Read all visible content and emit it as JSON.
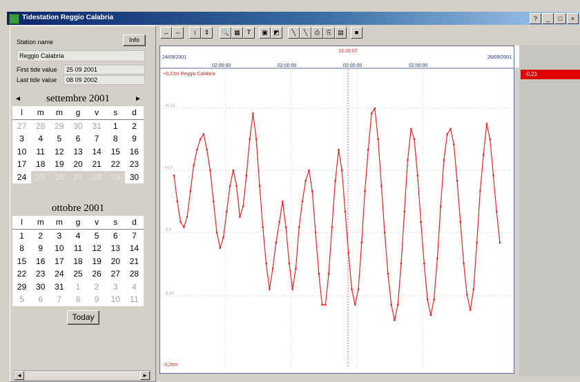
{
  "window": {
    "title": "Tidestation Reggio Calabria",
    "buttons": [
      "?",
      "_",
      "□",
      "×"
    ]
  },
  "station": {
    "name_label": "Station name",
    "info_button": "Info",
    "name_value": "Reggio Calabria",
    "first_label": "First tide value",
    "first_value": "25 09 2001",
    "last_label": "Last tide value",
    "last_value": "08 09 2002"
  },
  "calendar1": {
    "month": "settembre 2001",
    "prev": "◄",
    "next": "►",
    "dow": [
      "l",
      "m",
      "m",
      "g",
      "v",
      "s",
      "d"
    ],
    "days": [
      {
        "t": "27",
        "c": "gray"
      },
      {
        "t": "28",
        "c": "gray"
      },
      {
        "t": "29",
        "c": "gray"
      },
      {
        "t": "30",
        "c": "gray"
      },
      {
        "t": "31",
        "c": "gray"
      },
      {
        "t": "1",
        "c": ""
      },
      {
        "t": "2",
        "c": ""
      },
      {
        "t": "3",
        "c": ""
      },
      {
        "t": "4",
        "c": ""
      },
      {
        "t": "5",
        "c": ""
      },
      {
        "t": "6",
        "c": ""
      },
      {
        "t": "7",
        "c": ""
      },
      {
        "t": "8",
        "c": ""
      },
      {
        "t": "9",
        "c": ""
      },
      {
        "t": "10",
        "c": ""
      },
      {
        "t": "11",
        "c": ""
      },
      {
        "t": "12",
        "c": ""
      },
      {
        "t": "13",
        "c": ""
      },
      {
        "t": "14",
        "c": ""
      },
      {
        "t": "15",
        "c": ""
      },
      {
        "t": "16",
        "c": ""
      },
      {
        "t": "17",
        "c": ""
      },
      {
        "t": "18",
        "c": ""
      },
      {
        "t": "19",
        "c": ""
      },
      {
        "t": "20",
        "c": ""
      },
      {
        "t": "21",
        "c": ""
      },
      {
        "t": "22",
        "c": ""
      },
      {
        "t": "23",
        "c": ""
      },
      {
        "t": "24",
        "c": ""
      },
      {
        "t": "25",
        "c": "sel"
      },
      {
        "t": "26",
        "c": "sel"
      },
      {
        "t": "27",
        "c": "sel"
      },
      {
        "t": "28",
        "c": "sel"
      },
      {
        "t": "29",
        "c": "sel"
      },
      {
        "t": "30",
        "c": ""
      }
    ]
  },
  "calendar2": {
    "month": "ottobre 2001",
    "dow": [
      "l",
      "m",
      "m",
      "g",
      "v",
      "s",
      "d"
    ],
    "days": [
      {
        "t": "1",
        "c": ""
      },
      {
        "t": "2",
        "c": ""
      },
      {
        "t": "3",
        "c": ""
      },
      {
        "t": "4",
        "c": ""
      },
      {
        "t": "5",
        "c": ""
      },
      {
        "t": "6",
        "c": ""
      },
      {
        "t": "7",
        "c": ""
      },
      {
        "t": "8",
        "c": ""
      },
      {
        "t": "9",
        "c": ""
      },
      {
        "t": "10",
        "c": ""
      },
      {
        "t": "11",
        "c": ""
      },
      {
        "t": "12",
        "c": ""
      },
      {
        "t": "13",
        "c": ""
      },
      {
        "t": "14",
        "c": ""
      },
      {
        "t": "15",
        "c": ""
      },
      {
        "t": "16",
        "c": ""
      },
      {
        "t": "17",
        "c": ""
      },
      {
        "t": "18",
        "c": ""
      },
      {
        "t": "19",
        "c": ""
      },
      {
        "t": "20",
        "c": ""
      },
      {
        "t": "21",
        "c": ""
      },
      {
        "t": "22",
        "c": ""
      },
      {
        "t": "23",
        "c": ""
      },
      {
        "t": "24",
        "c": ""
      },
      {
        "t": "25",
        "c": ""
      },
      {
        "t": "26",
        "c": ""
      },
      {
        "t": "27",
        "c": ""
      },
      {
        "t": "28",
        "c": ""
      },
      {
        "t": "29",
        "c": ""
      },
      {
        "t": "30",
        "c": ""
      },
      {
        "t": "31",
        "c": ""
      },
      {
        "t": "1",
        "c": "gray"
      },
      {
        "t": "2",
        "c": "gray"
      },
      {
        "t": "3",
        "c": "gray"
      },
      {
        "t": "4",
        "c": "gray"
      },
      {
        "t": "5",
        "c": "gray"
      },
      {
        "t": "6",
        "c": "gray"
      },
      {
        "t": "7",
        "c": "gray"
      },
      {
        "t": "8",
        "c": "gray"
      },
      {
        "t": "9",
        "c": "gray"
      },
      {
        "t": "10",
        "c": "gray"
      },
      {
        "t": "11",
        "c": "gray"
      }
    ]
  },
  "today_button": "Today",
  "toolbar": {
    "icons": [
      {
        "name": "zoom-out-horizontal-icon",
        "glyph": "↔"
      },
      {
        "name": "zoom-in-horizontal-icon",
        "glyph": "⇔"
      },
      {
        "name": "zoom-out-vertical-icon",
        "glyph": "↕"
      },
      {
        "name": "zoom-in-vertical-icon",
        "glyph": "⇕"
      },
      {
        "name": "magnifier-icon",
        "glyph": "🔍"
      },
      {
        "name": "zoom-area-icon",
        "glyph": "▦"
      },
      {
        "name": "cursor-t-icon",
        "glyph": "T"
      },
      {
        "name": "window-icon",
        "glyph": "▣"
      },
      {
        "name": "chart-icon",
        "glyph": "◩"
      },
      {
        "name": "pen-icon",
        "glyph": "╲"
      },
      {
        "name": "pen-2-icon",
        "glyph": "╲"
      },
      {
        "name": "print-icon",
        "glyph": "⎙"
      },
      {
        "name": "export-icon",
        "glyph": "⎘"
      },
      {
        "name": "grid-icon",
        "glyph": "▤"
      },
      {
        "name": "stop-icon",
        "glyph": "■"
      }
    ]
  },
  "chart": {
    "date_left": "24/09/2001",
    "date_right": "26/09/2001",
    "cursor_time": "16:26:07",
    "tick_labels": [
      "02:00:00",
      "02:00:00",
      "02:00:00",
      "02:00:00",
      "02:00:00",
      "02:00:00"
    ],
    "series_label": "+0,22m  Reggio Calabria",
    "bottom_label": "-0,26m",
    "y_labels": [
      "+0,12",
      "+0,0",
      "-0,0",
      "-0,10"
    ],
    "readout": "-0,21",
    "line_color": "#e82020"
  },
  "chart_data": {
    "type": "line",
    "title": "Reggio Calabria",
    "ylabel": "",
    "xlabel": "",
    "ylim": [
      -0.26,
      0.22
    ],
    "x": [
      0,
      1,
      2,
      3,
      4,
      5,
      6,
      7,
      8,
      9,
      10,
      11,
      12,
      13,
      14,
      15,
      16,
      17,
      18,
      19,
      20,
      21,
      22,
      23,
      24,
      25,
      26,
      27,
      28,
      29,
      30,
      31,
      32,
      33,
      34,
      35,
      36,
      37,
      38,
      39,
      40,
      41,
      42,
      43,
      44,
      45,
      46,
      47,
      48,
      49,
      50,
      51,
      52,
      53,
      54,
      55,
      56,
      57,
      58,
      59,
      60,
      61,
      62,
      63,
      64,
      65,
      66,
      67,
      68,
      69,
      70,
      71,
      72,
      73,
      74,
      75,
      76,
      77,
      78,
      79,
      80,
      81,
      82,
      83,
      84,
      85,
      86,
      87,
      88,
      89,
      90,
      91,
      92,
      93,
      94,
      95,
      96,
      97,
      98,
      99
    ],
    "series": [
      {
        "name": "Reggio Calabria",
        "values": [
          0.05,
          0.0,
          -0.04,
          -0.05,
          -0.03,
          0.02,
          0.07,
          0.1,
          0.12,
          0.13,
          0.1,
          0.06,
          0.0,
          -0.06,
          -0.09,
          -0.07,
          -0.02,
          0.03,
          0.06,
          0.03,
          -0.03,
          -0.01,
          0.05,
          0.12,
          0.17,
          0.12,
          0.03,
          -0.05,
          -0.12,
          -0.17,
          -0.13,
          -0.08,
          -0.04,
          0.0,
          -0.05,
          -0.12,
          -0.17,
          -0.13,
          -0.05,
          0.0,
          0.04,
          0.06,
          0.02,
          -0.06,
          -0.14,
          -0.2,
          -0.2,
          -0.14,
          -0.05,
          0.04,
          0.1,
          0.06,
          -0.02,
          -0.1,
          -0.17,
          -0.2,
          -0.17,
          -0.08,
          0.02,
          0.1,
          0.17,
          0.18,
          0.12,
          0.03,
          -0.06,
          -0.14,
          -0.2,
          -0.23,
          -0.2,
          -0.12,
          -0.02,
          0.08,
          0.14,
          0.12,
          0.05,
          -0.04,
          -0.12,
          -0.19,
          -0.22,
          -0.19,
          -0.11,
          -0.01,
          0.08,
          0.13,
          0.14,
          0.11,
          0.04,
          -0.04,
          -0.12,
          -0.18,
          -0.21,
          -0.17,
          -0.08,
          0.02,
          0.09,
          0.15,
          0.12,
          0.05,
          -0.02,
          -0.08
        ]
      }
    ]
  }
}
